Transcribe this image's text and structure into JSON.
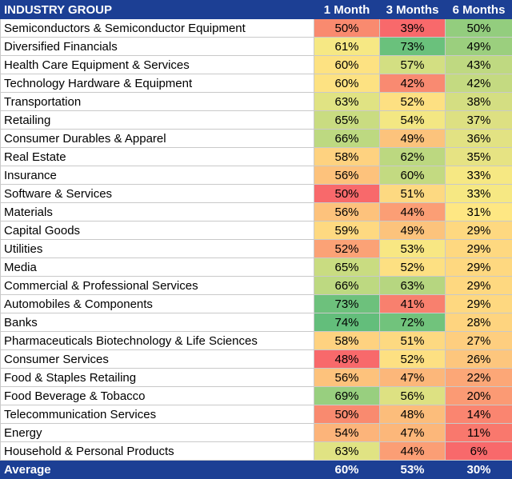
{
  "table": {
    "headers": [
      "INDUSTRY GROUP",
      "1 Month",
      "3 Months",
      "6 Months"
    ],
    "rows": [
      {
        "name": "Semiconductors & Semiconductor Equipment",
        "m1": "50%",
        "m3": "39%",
        "m6": "50%",
        "c1": "#f98a6f",
        "c3": "#f8696b",
        "c6": "#93cd7e"
      },
      {
        "name": "Diversified Financials",
        "m1": "61%",
        "m3": "73%",
        "m6": "49%",
        "c1": "#f6e884",
        "c3": "#6ac17c",
        "c6": "#9bcf7e"
      },
      {
        "name": "Health Care Equipment & Services",
        "m1": "60%",
        "m3": "57%",
        "m6": "43%",
        "c1": "#fde282",
        "c3": "#d3df82",
        "c6": "#bfd981"
      },
      {
        "name": "Technology Hardware & Equipment",
        "m1": "60%",
        "m3": "42%",
        "m6": "42%",
        "c1": "#fde282",
        "c3": "#f98a71",
        "c6": "#c4da81"
      },
      {
        "name": "Transportation",
        "m1": "63%",
        "m3": "52%",
        "m6": "38%",
        "c1": "#e0e383",
        "c3": "#fde082",
        "c6": "#d4de82"
      },
      {
        "name": "Retailing",
        "m1": "65%",
        "m3": "54%",
        "m6": "37%",
        "c1": "#c9dc81",
        "c3": "#f3e783",
        "c6": "#dde082"
      },
      {
        "name": "Consumer Durables & Apparel",
        "m1": "66%",
        "m3": "49%",
        "m6": "36%",
        "c1": "#bdd981",
        "c3": "#fcc37c",
        "c6": "#e2e283"
      },
      {
        "name": "Real Estate",
        "m1": "58%",
        "m3": "62%",
        "m6": "35%",
        "c1": "#fed280",
        "c3": "#bcd880",
        "c6": "#e6e383"
      },
      {
        "name": "Insurance",
        "m1": "56%",
        "m3": "60%",
        "m6": "33%",
        "c1": "#fdc27c",
        "c3": "#c3da81",
        "c6": "#f6e883"
      },
      {
        "name": "Software & Services",
        "m1": "50%",
        "m3": "51%",
        "m6": "33%",
        "c1": "#f8696b",
        "c3": "#fdd981",
        "c6": "#f6e883"
      },
      {
        "name": "Materials",
        "m1": "56%",
        "m3": "44%",
        "m6": "31%",
        "c1": "#fdc27c",
        "c3": "#fb9e75",
        "c6": "#fee783"
      },
      {
        "name": "Capital Goods",
        "m1": "59%",
        "m3": "49%",
        "m6": "29%",
        "c1": "#fed981",
        "c3": "#fcc37c",
        "c6": "#fed880"
      },
      {
        "name": "Utilities",
        "m1": "52%",
        "m3": "53%",
        "m6": "29%",
        "c1": "#fba276",
        "c3": "#f8e783",
        "c6": "#fed880"
      },
      {
        "name": "Media",
        "m1": "65%",
        "m3": "52%",
        "m6": "29%",
        "c1": "#c9dc81",
        "c3": "#fde082",
        "c6": "#fed880"
      },
      {
        "name": "Commercial & Professional Services",
        "m1": "66%",
        "m3": "63%",
        "m6": "29%",
        "c1": "#bdd981",
        "c3": "#b6d680",
        "c6": "#fed880"
      },
      {
        "name": "Automobiles & Components",
        "m1": "73%",
        "m3": "41%",
        "m6": "29%",
        "c1": "#6dc17c",
        "c3": "#f8806e",
        "c6": "#fed880"
      },
      {
        "name": "Banks",
        "m1": "74%",
        "m3": "72%",
        "m6": "28%",
        "c1": "#63be7b",
        "c3": "#71c37c",
        "c6": "#fed47f"
      },
      {
        "name": "Pharmaceuticals Biotechnology & Life Sciences",
        "m1": "58%",
        "m3": "51%",
        "m6": "27%",
        "c1": "#fed280",
        "c3": "#fdd981",
        "c6": "#fece7f"
      },
      {
        "name": "Consumer Services",
        "m1": "48%",
        "m3": "52%",
        "m6": "26%",
        "c1": "#f8696b",
        "c3": "#fde082",
        "c6": "#fdc67d"
      },
      {
        "name": "Food & Staples Retailing",
        "m1": "56%",
        "m3": "47%",
        "m6": "22%",
        "c1": "#fdc27c",
        "c3": "#fcb77a",
        "c6": "#fca777"
      },
      {
        "name": "Food Beverage & Tobacco",
        "m1": "69%",
        "m3": "56%",
        "m6": "20%",
        "c1": "#98cf7f",
        "c3": "#dde182",
        "c6": "#fb9a74"
      },
      {
        "name": "Telecommunication Services",
        "m1": "50%",
        "m3": "48%",
        "m6": "14%",
        "c1": "#f98a6f",
        "c3": "#fcbd7b",
        "c6": "#fa8570"
      },
      {
        "name": "Energy",
        "m1": "54%",
        "m3": "47%",
        "m6": "11%",
        "c1": "#fcb47a",
        "c3": "#fcb77a",
        "c6": "#f9786d"
      },
      {
        "name": "Household & Personal Products",
        "m1": "63%",
        "m3": "44%",
        "m6": "6%",
        "c1": "#e0e383",
        "c3": "#fb9e75",
        "c6": "#f8696b"
      }
    ],
    "footer": {
      "name": "Average",
      "m1": "60%",
      "m3": "53%",
      "m6": "30%"
    },
    "header_color": "#1c3f94"
  }
}
